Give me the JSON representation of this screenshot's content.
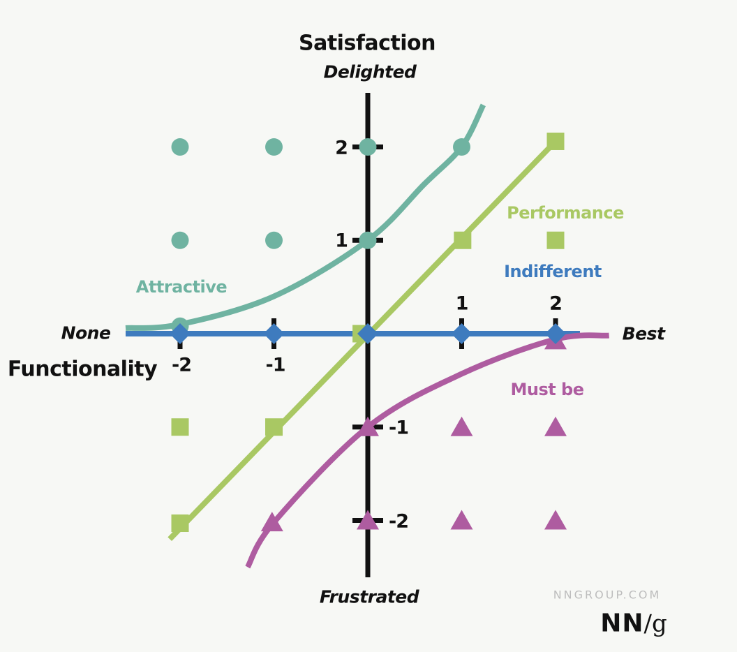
{
  "branding": {
    "site": "NNGROUP.COM",
    "logo_bold": "NN",
    "logo_rest": "/g"
  },
  "colors": {
    "background": "#F7F8F5",
    "axis": "#111111",
    "attractive": "#6FB3A1",
    "performance": "#A9C863",
    "indifferent": "#3E7BBE",
    "must_be": "#AE5CA0",
    "branding_gray": "#BDBDBD"
  },
  "chart_data": {
    "type": "scatter",
    "title": "Satisfaction",
    "xlabel": "Functionality",
    "ylabel": "Satisfaction",
    "x_min_label": "None",
    "x_max_label": "Best",
    "y_max_label": "Delighted",
    "y_min_label": "Frustrated",
    "x_ticks": [
      -2,
      -1,
      1,
      2
    ],
    "y_ticks": [
      2,
      1,
      -1,
      -2
    ],
    "x_range": [
      -2.6,
      2.6
    ],
    "y_range": [
      -2.6,
      2.6
    ],
    "grid": false,
    "legend_position": "inline-right",
    "series": [
      {
        "name": "Attractive",
        "color": "#6FB3A1",
        "marker": "circle",
        "curve": [
          [
            -2.58,
            0.06
          ],
          [
            -2,
            0.1
          ],
          [
            -1,
            0.4
          ],
          [
            0,
            1
          ],
          [
            0.6,
            1.6
          ],
          [
            1,
            2
          ],
          [
            1.23,
            2.45
          ]
        ],
        "points": [
          [
            -2,
            2
          ],
          [
            -1,
            2
          ],
          [
            0,
            2
          ],
          [
            1,
            2
          ],
          [
            -2,
            1
          ],
          [
            -1,
            1
          ],
          [
            0,
            1
          ],
          [
            -2,
            0.08
          ]
        ]
      },
      {
        "name": "Performance",
        "color": "#A9C863",
        "marker": "square",
        "curve": [
          [
            -2.11,
            -2.2
          ],
          [
            2,
            2.06
          ]
        ],
        "points": [
          [
            -2,
            -2.03
          ],
          [
            -1,
            -1
          ],
          [
            -0.07,
            0
          ],
          [
            1.01,
            1
          ],
          [
            2,
            2.06
          ],
          [
            -2,
            -1
          ],
          [
            2,
            1
          ]
        ]
      },
      {
        "name": "Indifferent",
        "color": "#3E7BBE",
        "marker": "diamond",
        "curve": [
          [
            -2.58,
            0
          ],
          [
            2.26,
            0
          ]
        ],
        "points": [
          [
            -2,
            0
          ],
          [
            -1,
            0
          ],
          [
            0,
            0
          ],
          [
            1,
            0
          ],
          [
            2,
            0
          ]
        ]
      },
      {
        "name": "Must be",
        "color": "#AE5CA0",
        "marker": "triangle",
        "curve": [
          [
            -1.28,
            -2.5
          ],
          [
            -1,
            -2.02
          ],
          [
            0,
            -1
          ],
          [
            1,
            -0.43
          ],
          [
            2,
            -0.06
          ],
          [
            2.57,
            -0.02
          ]
        ],
        "points": [
          [
            -1.02,
            -2.02
          ],
          [
            0,
            -1
          ],
          [
            0,
            -2
          ],
          [
            1,
            -1
          ],
          [
            2,
            -1
          ],
          [
            1,
            -2
          ],
          [
            2,
            -2
          ],
          [
            2,
            -0.07
          ]
        ]
      }
    ]
  }
}
